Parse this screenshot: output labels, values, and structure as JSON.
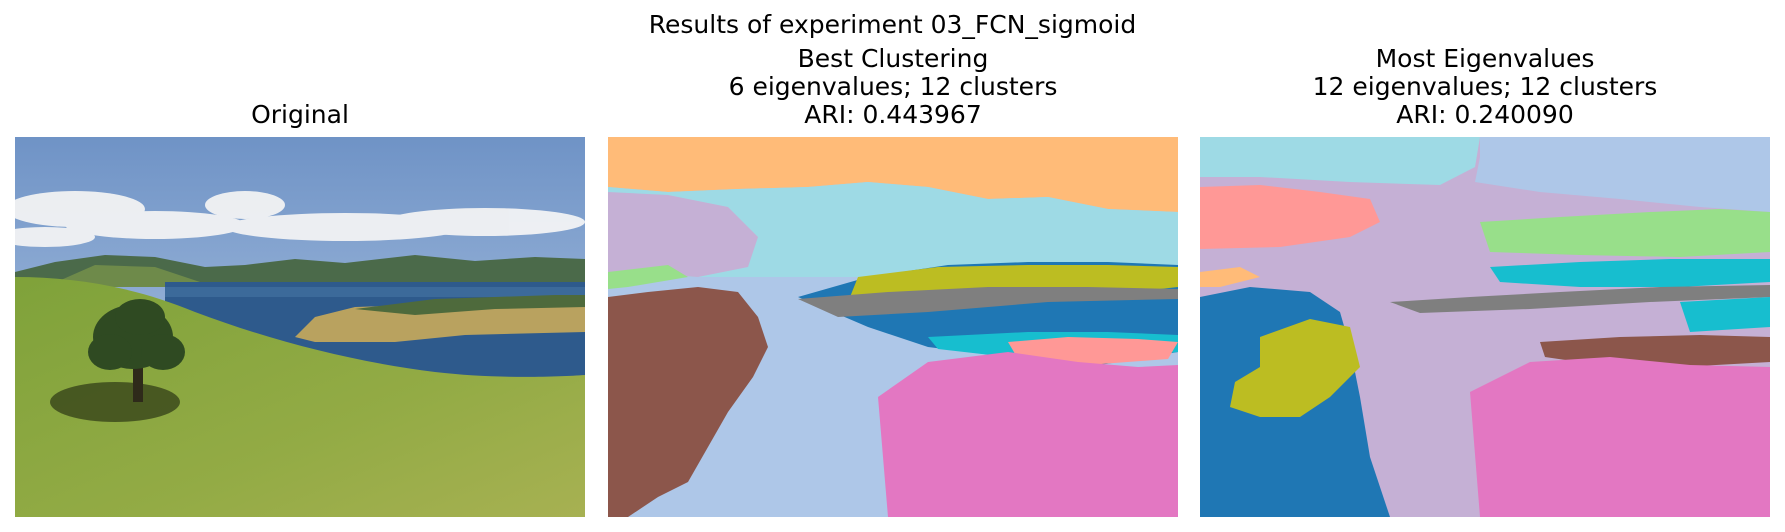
{
  "figure": {
    "suptitle": "Results of experiment 03_FCN_sigmoid"
  },
  "panels": [
    {
      "title_lines": [
        "Original"
      ]
    },
    {
      "title_lines": [
        "Best Clustering",
        "6 eigenvalues; 12 clusters",
        "ARI: 0.443967"
      ]
    },
    {
      "title_lines": [
        "Most Eigenvalues",
        "12 eigenvalues; 12 clusters",
        "ARI: 0.240090"
      ]
    }
  ],
  "cluster_colors": [
    "#1f77b4",
    "#aec7e8",
    "#ffbb78",
    "#98df8a",
    "#ff9896",
    "#c5b0d5",
    "#8c564b",
    "#e377c2",
    "#7f7f7f",
    "#bcbd22",
    "#17becf",
    "#9edae5"
  ]
}
